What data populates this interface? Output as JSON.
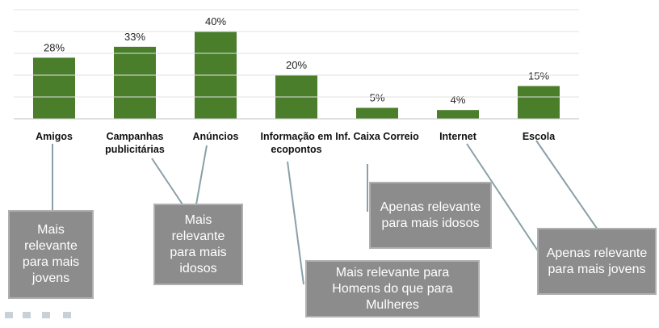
{
  "chart_data": {
    "type": "bar",
    "categories": [
      "Amigos",
      "Campanhas publicitárias",
      "Anúncios",
      "Informação em ecopontos",
      "Inf. Caixa Correio",
      "Internet",
      "Escola"
    ],
    "values": [
      28,
      33,
      40,
      20,
      5,
      4,
      15
    ],
    "value_labels": [
      "28%",
      "33%",
      "40%",
      "20%",
      "5%",
      "4%",
      "15%"
    ],
    "color": "#4a7e2b",
    "ylim": [
      0,
      50
    ],
    "yticks": [
      0,
      10,
      20,
      30,
      40,
      50
    ],
    "grid": true,
    "annotations": [
      "Mais relevante para mais jovens",
      "Mais relevante para mais idosos",
      "Mais relevante para Homens do que para Mulheres",
      "Apenas relevante para mais idosos",
      "Apenas relevante para mais jovens"
    ]
  }
}
